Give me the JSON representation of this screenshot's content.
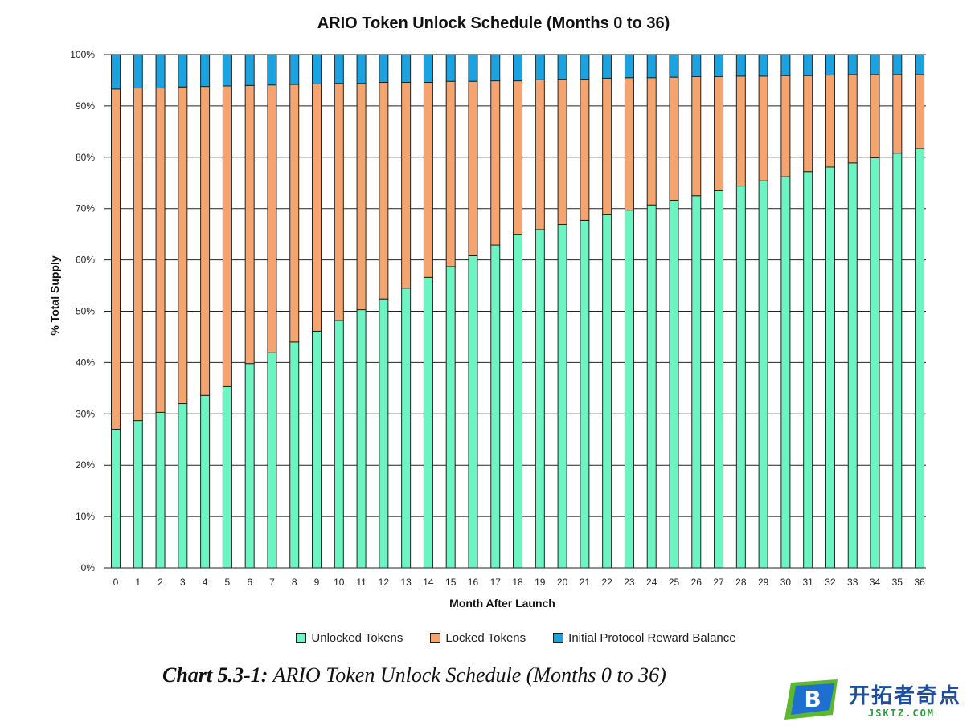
{
  "chart_data": {
    "type": "bar",
    "stacked": true,
    "title": "ARIO Token Unlock Schedule (Months 0 to 36)",
    "xlabel": "Month After Launch",
    "ylabel": "% Total Supply",
    "ylim": [
      0,
      100
    ],
    "yticks": [
      "0%",
      "10%",
      "20%",
      "30%",
      "40%",
      "50%",
      "60%",
      "70%",
      "80%",
      "90%",
      "100%"
    ],
    "grid": "horizontal",
    "legend_position": "bottom",
    "categories": [
      "0",
      "1",
      "2",
      "3",
      "4",
      "5",
      "6",
      "7",
      "8",
      "9",
      "10",
      "11",
      "12",
      "13",
      "14",
      "15",
      "16",
      "17",
      "18",
      "19",
      "20",
      "21",
      "22",
      "23",
      "24",
      "25",
      "26",
      "27",
      "28",
      "29",
      "30",
      "31",
      "32",
      "33",
      "34",
      "35",
      "36"
    ],
    "series": [
      {
        "name": "Unlocked Tokens",
        "color": "#6cf5c2",
        "values": [
          27.0,
          28.7,
          30.3,
          32.0,
          33.6,
          35.3,
          39.8,
          41.9,
          44.0,
          46.1,
          48.2,
          50.3,
          52.4,
          54.5,
          56.6,
          58.7,
          60.8,
          62.9,
          65.0,
          65.9,
          66.9,
          67.7,
          68.8,
          69.7,
          70.7,
          71.6,
          72.5,
          73.5,
          74.4,
          75.4,
          76.2,
          77.2,
          78.1,
          78.9,
          79.9,
          80.8,
          81.7
        ]
      },
      {
        "name": "Locked Tokens",
        "color": "#f4a46e",
        "values": [
          66.3,
          64.8,
          63.2,
          61.7,
          60.2,
          58.6,
          54.2,
          52.2,
          50.2,
          48.2,
          46.2,
          44.1,
          42.2,
          40.1,
          38.0,
          36.1,
          34.0,
          32.0,
          29.9,
          29.2,
          28.3,
          27.5,
          26.6,
          25.8,
          24.8,
          24.0,
          23.2,
          22.2,
          21.4,
          20.4,
          19.7,
          18.7,
          17.9,
          17.2,
          16.2,
          15.3,
          14.4
        ]
      },
      {
        "name": "Initial Protocol Reward Balance",
        "color": "#1aa3e0",
        "values": [
          6.7,
          6.5,
          6.5,
          6.3,
          6.2,
          6.1,
          6.0,
          5.9,
          5.8,
          5.7,
          5.6,
          5.6,
          5.4,
          5.4,
          5.4,
          5.2,
          5.2,
          5.1,
          5.1,
          4.9,
          4.8,
          4.8,
          4.6,
          4.5,
          4.5,
          4.4,
          4.3,
          4.3,
          4.2,
          4.2,
          4.1,
          4.1,
          4.0,
          3.9,
          3.9,
          3.9,
          3.9
        ]
      }
    ]
  },
  "caption": {
    "label": "Chart 5.3-1:",
    "text": " ARIO Token Unlock Schedule (Months 0 to 36)"
  },
  "watermark": {
    "logo_letter": "B",
    "text": "开拓者奇点",
    "sub": "JSKTZ.COM"
  }
}
